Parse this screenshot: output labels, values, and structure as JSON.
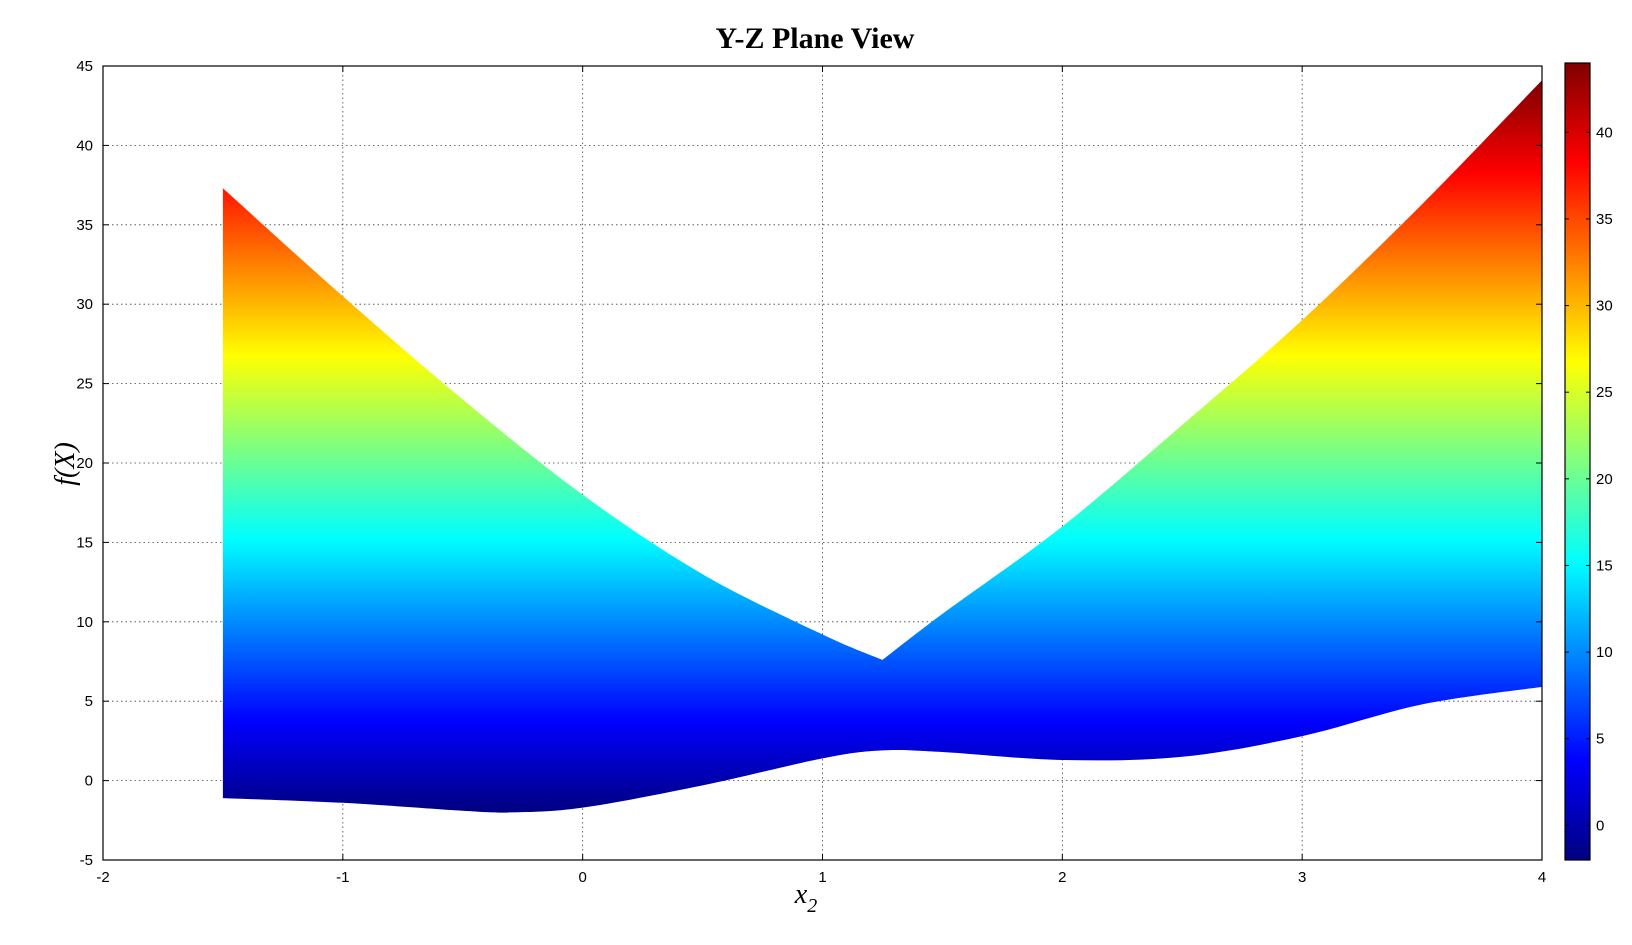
{
  "chart_data": {
    "type": "area",
    "title": "Y-Z Plane View",
    "xlabel": "x",
    "xlabel_subscript": "2",
    "ylabel": "f(X)",
    "xlim": [
      -2,
      4
    ],
    "ylim": [
      -5,
      45
    ],
    "xticks": [
      "-2",
      "-1",
      "0",
      "1",
      "2",
      "3",
      "4"
    ],
    "yticks": [
      "-5",
      "0",
      "5",
      "10",
      "15",
      "20",
      "25",
      "30",
      "35",
      "40",
      "45"
    ],
    "grid": true,
    "colormap": "jet",
    "colorbar": {
      "clim": [
        -2,
        44
      ],
      "ticks": [
        "0",
        "5",
        "10",
        "15",
        "20",
        "25",
        "30",
        "35",
        "40"
      ],
      "location": "right"
    },
    "series": [
      {
        "role": "upper",
        "x": [
          -1.5,
          -1.0,
          -0.5,
          0.0,
          0.5,
          1.0,
          1.25,
          1.5,
          2.0,
          2.5,
          3.0,
          3.5,
          4.0
        ],
        "y": [
          37.3,
          30.5,
          24.0,
          18.0,
          13.0,
          9.2,
          7.6,
          10.5,
          16.0,
          22.4,
          29.0,
          36.3,
          44.1
        ]
      },
      {
        "role": "lower",
        "x": [
          -1.5,
          -1.0,
          -0.5,
          -0.3,
          0.0,
          0.5,
          1.0,
          1.25,
          1.5,
          2.0,
          2.5,
          3.0,
          3.5,
          4.0
        ],
        "y": [
          -1.1,
          -1.4,
          -1.9,
          -2.0,
          -1.7,
          -0.3,
          1.4,
          1.9,
          1.8,
          1.3,
          1.5,
          2.8,
          4.8,
          5.9
        ]
      }
    ]
  }
}
